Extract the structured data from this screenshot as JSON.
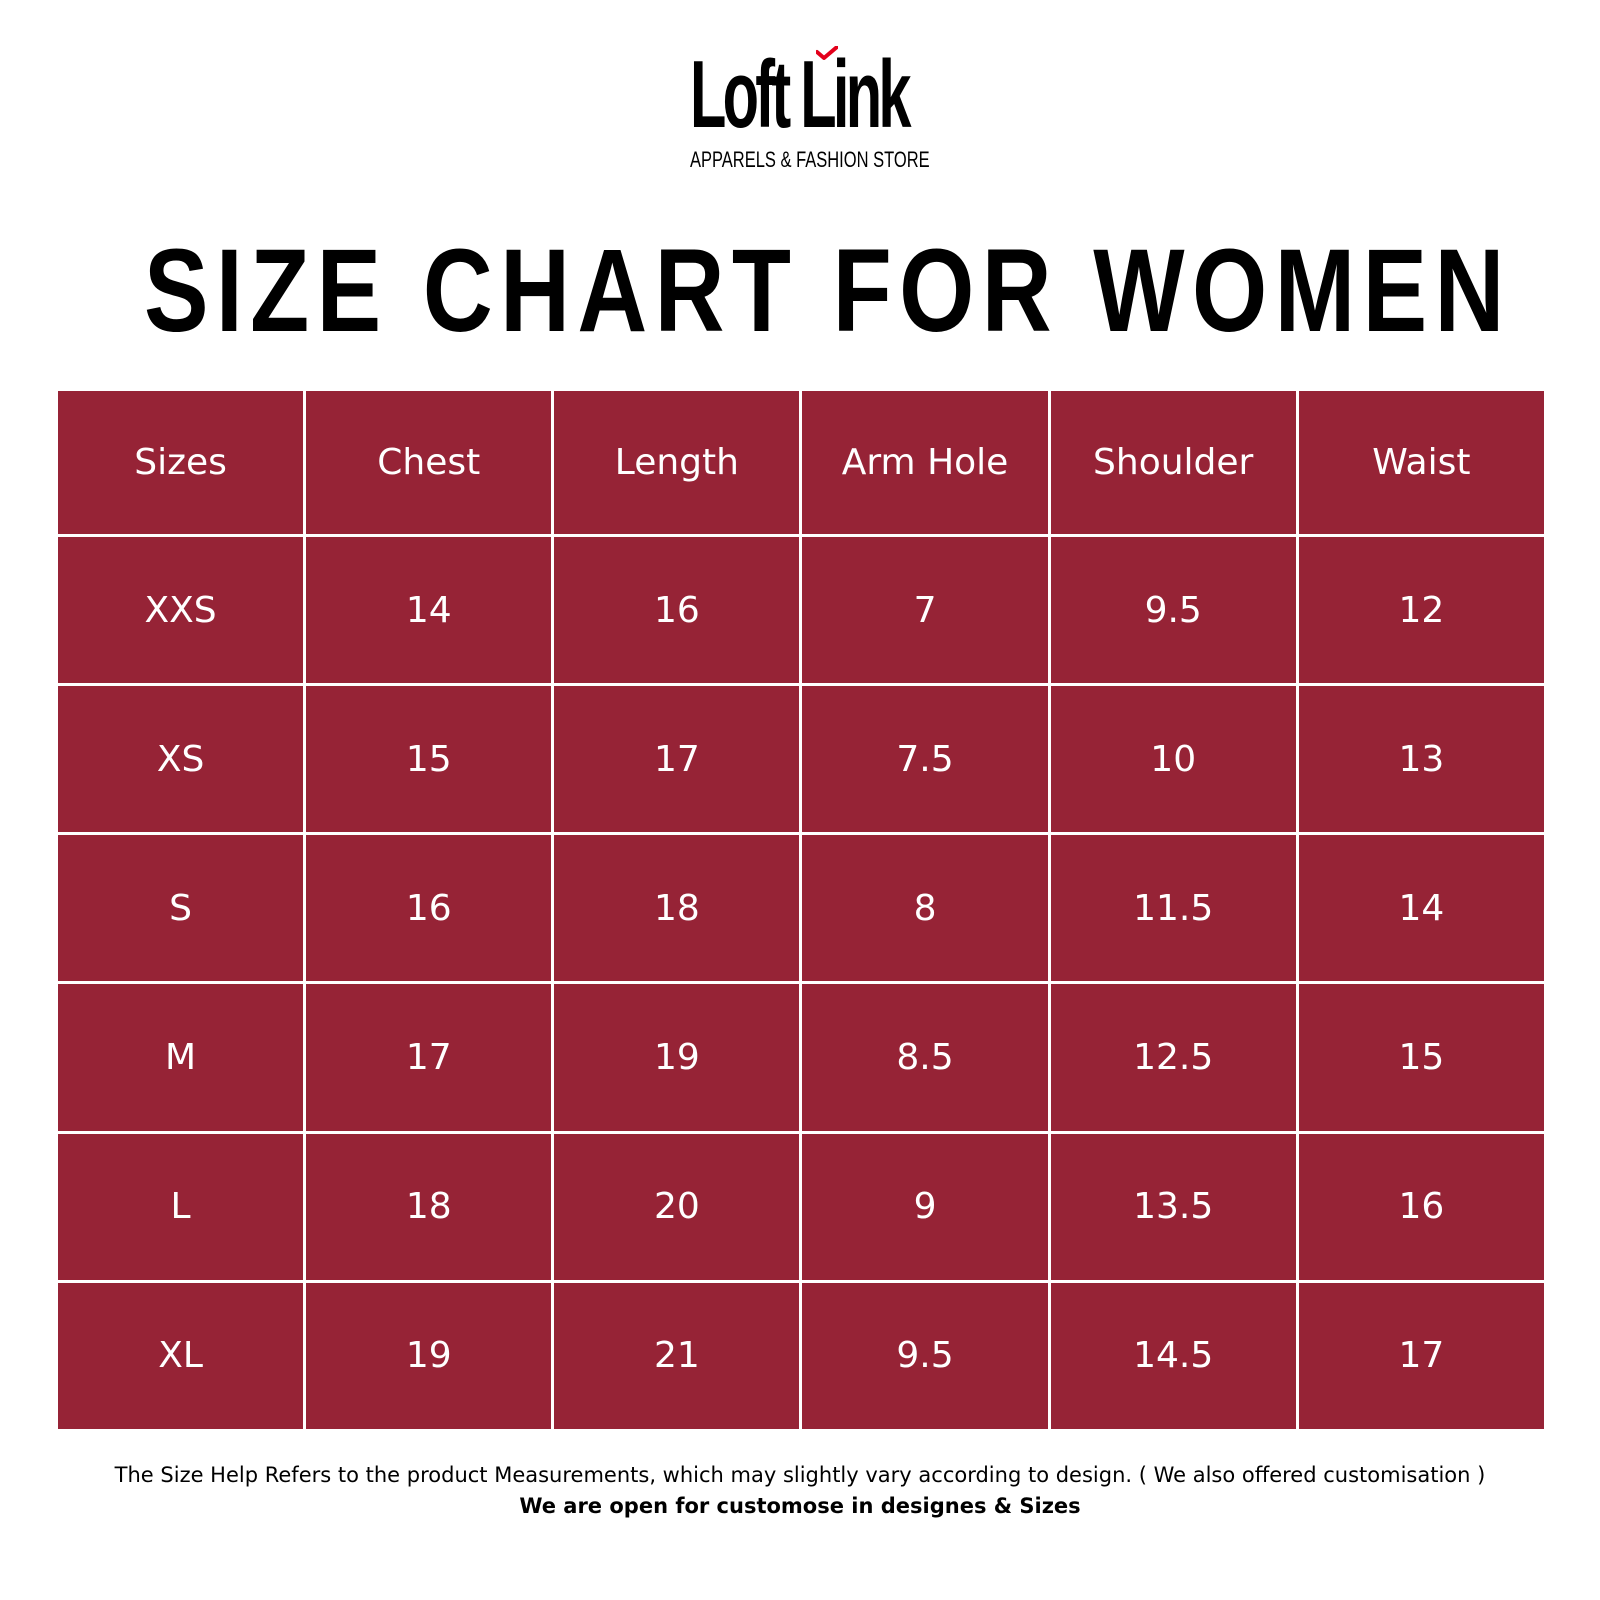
{
  "logo": {
    "name": "Loft Link",
    "tagline": "APPARELS & FASHION STORE",
    "accent_color": "#e3001b",
    "icon": "red-tick-icon"
  },
  "title": "SIZE CHART FOR WOMEN",
  "table": {
    "header_color": "#962336",
    "columns": [
      "Sizes",
      "Chest",
      "Length",
      "Arm Hole",
      "Shoulder",
      "Waist"
    ],
    "rows": [
      [
        "XXS",
        "14",
        "16",
        "7",
        "9.5",
        "12"
      ],
      [
        "XS",
        "15",
        "17",
        "7.5",
        "10",
        "13"
      ],
      [
        "S",
        "16",
        "18",
        "8",
        "11.5",
        "14"
      ],
      [
        "M",
        "17",
        "19",
        "8.5",
        "12.5",
        "15"
      ],
      [
        "L",
        "18",
        "20",
        "9",
        "13.5",
        "16"
      ],
      [
        "XL",
        "19",
        "21",
        "9.5",
        "14.5",
        "17"
      ]
    ]
  },
  "footer": {
    "note": "The Size Help Refers to the product Measurements, which may slightly vary according to design. ( We also offered customisation )",
    "bold_note": "We are open for customose in designes & Sizes"
  }
}
